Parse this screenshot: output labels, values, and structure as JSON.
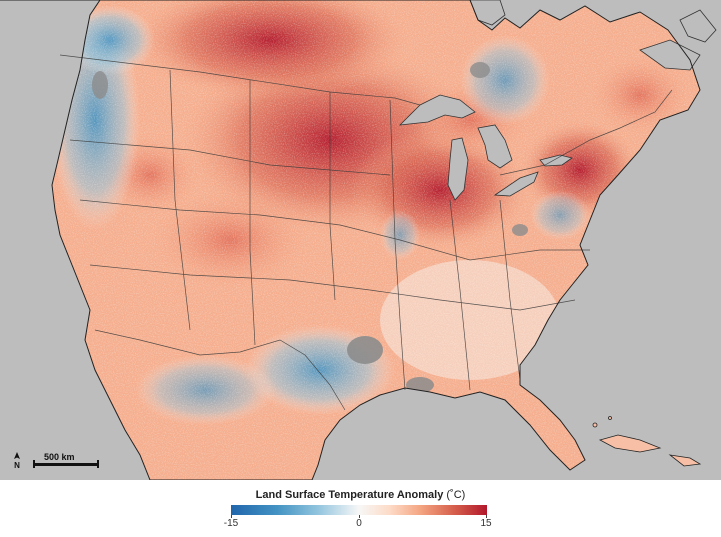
{
  "map": {
    "scale_label": "500 km",
    "north_symbol": "N",
    "colors": {
      "ocean": "#bdbdbd",
      "no_data": "#8c8c8c",
      "cold": "#2166ac",
      "neutral": "#f7f7f7",
      "hot": "#b2182b",
      "borders": "#3a3a3a"
    }
  },
  "legend": {
    "title": "Land Surface Temperature Anomaly",
    "unit": "(˚C)",
    "min_label": "-15",
    "mid_label": "0",
    "max_label": "15",
    "min": -15,
    "max": 15
  }
}
